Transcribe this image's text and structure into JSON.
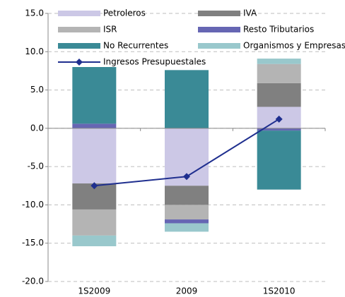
{
  "chart_data": {
    "type": "bar",
    "categories": [
      "1S2009",
      "2009",
      "1S2010"
    ],
    "series": [
      {
        "name": "Petroleros",
        "color": "#ccc8e6",
        "values": [
          -7.2,
          -7.5,
          2.8
        ]
      },
      {
        "name": "IVA",
        "color": "#808080",
        "values": [
          -3.4,
          -2.5,
          3.1
        ]
      },
      {
        "name": "ISR",
        "color": "#b4b4b4",
        "values": [
          -3.4,
          -1.9,
          2.5
        ]
      },
      {
        "name": "Resto Tributarios",
        "color": "#6666b3",
        "values": [
          0.6,
          -0.5,
          -0.3
        ]
      },
      {
        "name": "No Recurrentes",
        "color": "#3a8a96",
        "values": [
          7.4,
          7.6,
          -7.7
        ]
      },
      {
        "name": "Organismos y Empresas",
        "color": "#99c8cc",
        "values": [
          -1.4,
          -1.1,
          0.7
        ]
      }
    ],
    "line": {
      "name": "Ingresos Presupuestales",
      "color": "#1f2f8f",
      "values": [
        -7.5,
        -6.3,
        1.2
      ]
    },
    "ylim": [
      -20,
      15
    ],
    "yticks": [
      {
        "value": -20,
        "label": "-20.0"
      },
      {
        "value": -15,
        "label": "-15.0"
      },
      {
        "value": -10,
        "label": "-10.0"
      },
      {
        "value": -5,
        "label": "-5.0"
      },
      {
        "value": 0,
        "label": "0.0"
      },
      {
        "value": 5,
        "label": "5.0"
      },
      {
        "value": 10,
        "label": "10.0"
      },
      {
        "value": 15,
        "label": "15.0"
      }
    ],
    "grid": true
  }
}
